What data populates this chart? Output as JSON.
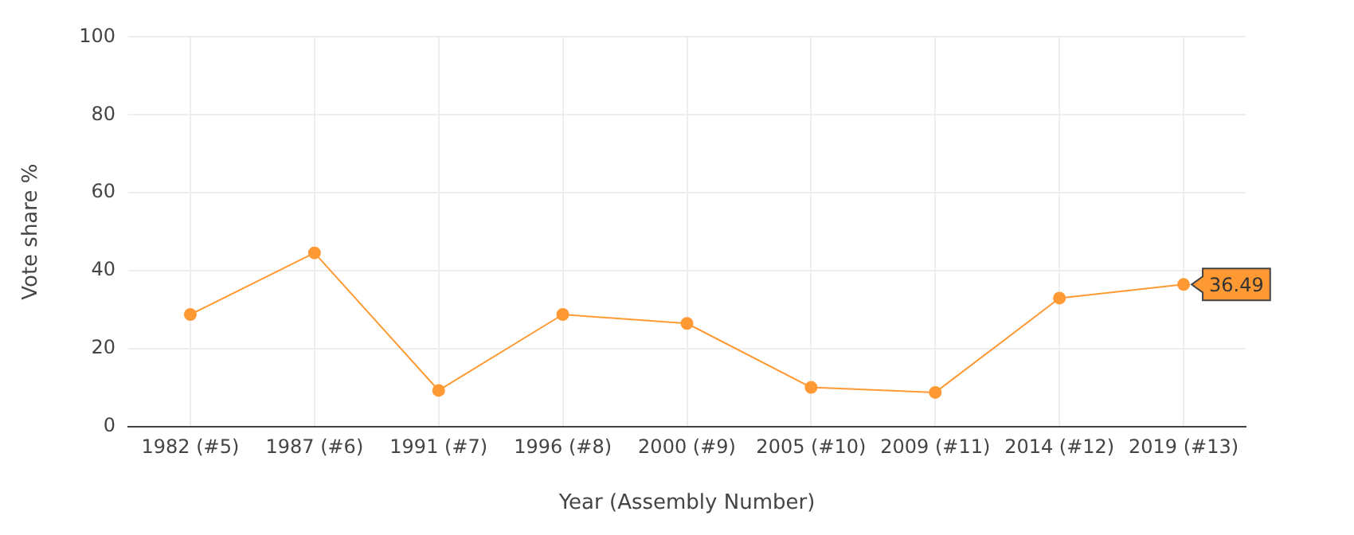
{
  "chart_data": {
    "type": "line",
    "xlabel": "Year (Assembly Number)",
    "ylabel": "Vote share %",
    "categories": [
      "1982 (#5)",
      "1987 (#6)",
      "1991 (#7)",
      "1996 (#8)",
      "2000 (#9)",
      "2005 (#10)",
      "2009 (#11)",
      "2014 (#12)",
      "2019 (#13)"
    ],
    "values": [
      28.8,
      44.6,
      9.3,
      28.8,
      26.5,
      10.1,
      8.8,
      33.0,
      36.49
    ],
    "color": "#ff9933",
    "ylim": [
      0,
      100
    ],
    "yticks": [
      0,
      20,
      40,
      60,
      80,
      100
    ],
    "grid": true,
    "marker": "circle",
    "legend": false,
    "annotations": [
      {
        "text": "36.49",
        "x": "2019 (#13)",
        "y": 36.49
      }
    ]
  }
}
